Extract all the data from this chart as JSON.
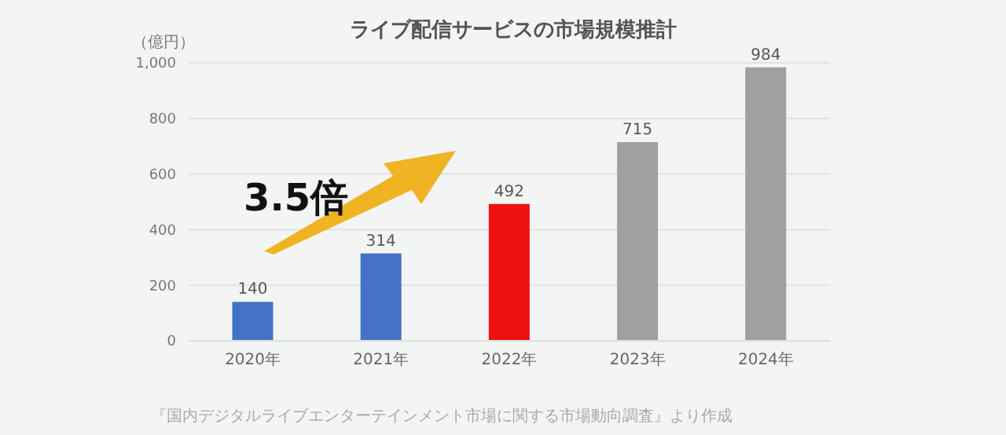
{
  "chart_data": {
    "type": "bar",
    "title": "ライブ配信サービスの市場規模推計",
    "ylabel": "（億円）",
    "categories": [
      "2020年",
      "2021年",
      "2022年",
      "2023年",
      "2024年"
    ],
    "values": [
      140,
      314,
      492,
      715,
      984
    ],
    "colors": [
      "#4472c4",
      "#4472c4",
      "#ee1111",
      "#a0a0a0",
      "#a0a0a0"
    ],
    "ylim": [
      0,
      1000
    ],
    "yticks": [
      0,
      200,
      400,
      600,
      800,
      {
        "value": 1000,
        "label": "1,000"
      }
    ],
    "grid": "y",
    "data_labels": true,
    "annotations": [
      "3.5倍",
      "『国内デジタルライブエンターテインメント市場に関する市場動向調査』より作成"
    ]
  }
}
